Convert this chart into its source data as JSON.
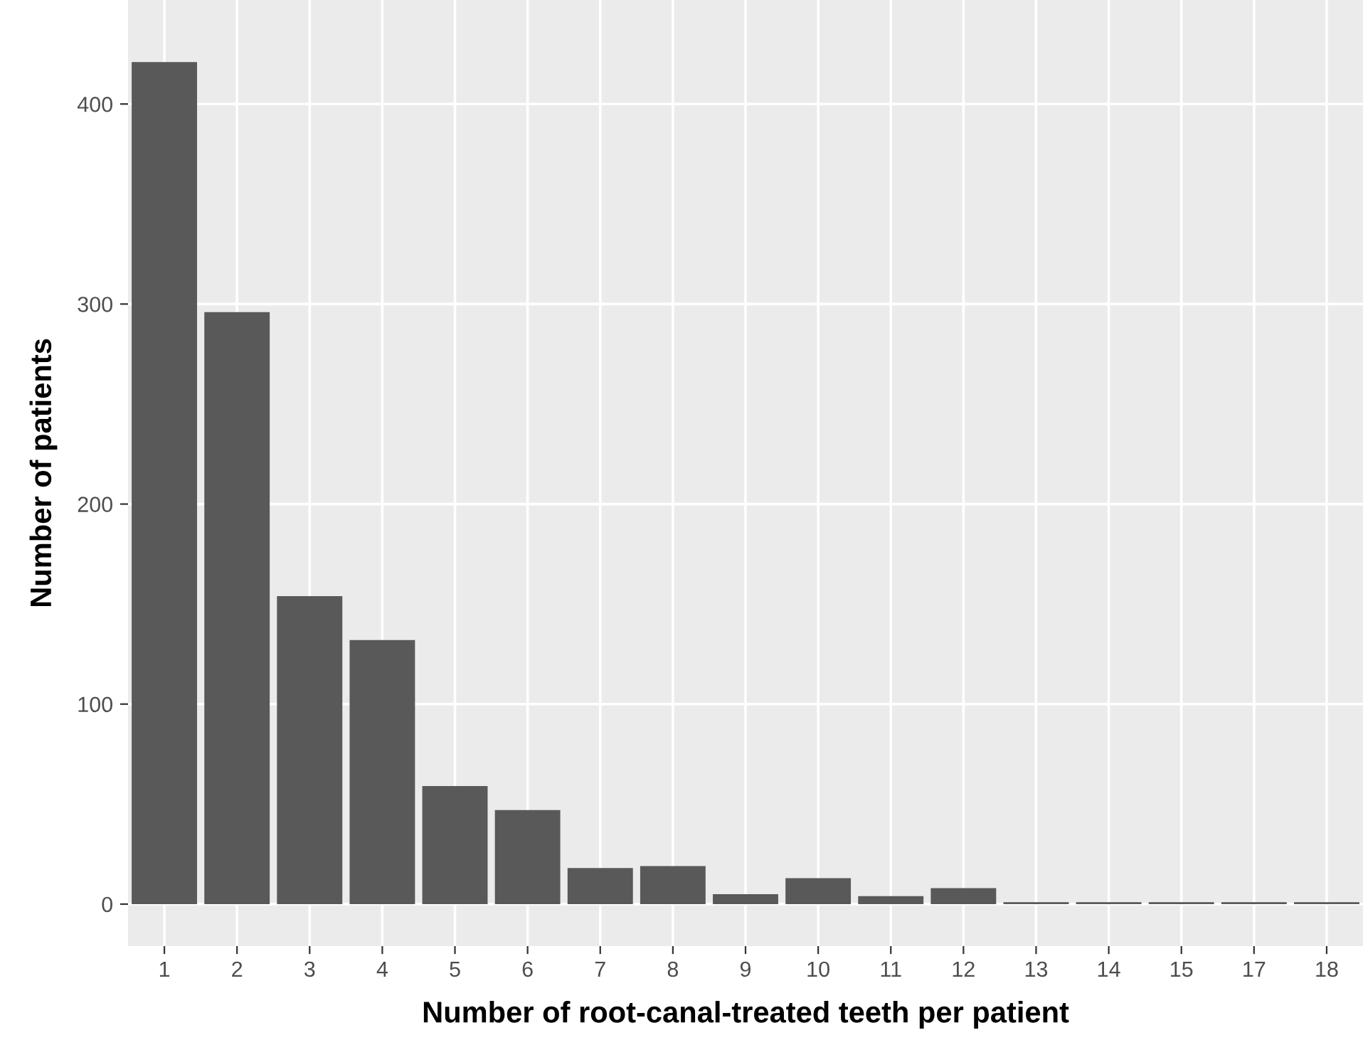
{
  "chart_data": {
    "type": "bar",
    "xlabel": "Number of root-canal-treated teeth per patient",
    "ylabel": "Number of patients",
    "categories": [
      "1",
      "2",
      "3",
      "4",
      "5",
      "6",
      "7",
      "8",
      "9",
      "10",
      "11",
      "12",
      "13",
      "14",
      "15",
      "17",
      "18"
    ],
    "values": [
      421,
      296,
      154,
      132,
      59,
      47,
      18,
      19,
      5,
      13,
      4,
      8,
      1,
      1,
      1,
      1,
      1
    ],
    "color": "#595959",
    "ylim": [
      -21,
      452
    ],
    "yticks": [
      0,
      100,
      200,
      300,
      400
    ],
    "grid": true
  }
}
